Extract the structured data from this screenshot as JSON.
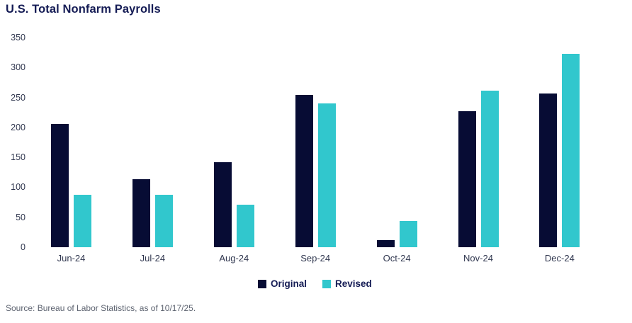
{
  "source": "Source: Bureau of Labor Statistics, as of 10/17/25.",
  "colors": {
    "original": "#070c34",
    "revised": "#31c7cd",
    "title_text": "#151c55",
    "axis_label_text": "#30374f",
    "source_text": "#5d6370",
    "background": "#ffffff"
  },
  "chart_data": {
    "type": "bar",
    "title": "U.S. Total Nonfarm Payrolls",
    "categories": [
      "Jun-24",
      "Jul-24",
      "Aug-24",
      "Sep-24",
      "Oct-24",
      "Nov-24",
      "Dec-24"
    ],
    "series": [
      {
        "name": "Original",
        "color_key": "original",
        "values": [
          206,
          114,
          142,
          254,
          12,
          227,
          256
        ]
      },
      {
        "name": "Revised",
        "color_key": "revised",
        "values": [
          87,
          88,
          71,
          240,
          44,
          261,
          323
        ]
      }
    ],
    "xlabel": "",
    "ylabel": "",
    "ylim": [
      0,
      350
    ],
    "y_ticks": [
      0,
      50,
      100,
      150,
      200,
      250,
      300,
      350
    ],
    "grid": false,
    "axis_lines": false,
    "legend_position": "bottom-center"
  }
}
